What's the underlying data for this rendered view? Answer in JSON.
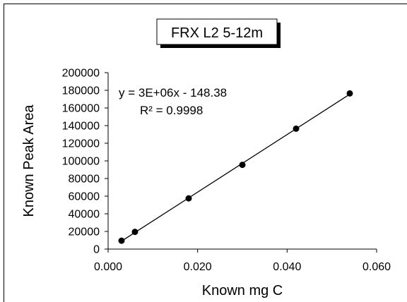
{
  "chart_data": {
    "type": "scatter",
    "title": "FRX L2 5-12m",
    "xlabel": "Known mg C",
    "ylabel": "Known Peak Area",
    "xlim": [
      0,
      0.06
    ],
    "ylim": [
      0,
      200000
    ],
    "x_ticks": [
      "0.000",
      "0.020",
      "0.040",
      "0.060"
    ],
    "x_tick_values": [
      0,
      0.02,
      0.04,
      0.06
    ],
    "y_ticks": [
      "0",
      "20000",
      "40000",
      "60000",
      "80000",
      "100000",
      "120000",
      "140000",
      "160000",
      "180000",
      "200000"
    ],
    "y_tick_values": [
      0,
      20000,
      40000,
      60000,
      80000,
      100000,
      120000,
      140000,
      160000,
      180000,
      200000
    ],
    "grid": false,
    "series": [
      {
        "x": [
          0.003,
          0.006,
          0.018,
          0.03,
          0.042,
          0.054
        ],
        "y": [
          9500,
          19500,
          57500,
          95500,
          136500,
          176500
        ],
        "marker": "circle",
        "color": "#000000"
      }
    ],
    "trendline": {
      "type": "linear",
      "x_range": [
        0.003,
        0.054
      ],
      "equation": "y = 3E+06x - 148.38",
      "r_squared": "R² = 0.9998",
      "color": "#000000"
    }
  }
}
